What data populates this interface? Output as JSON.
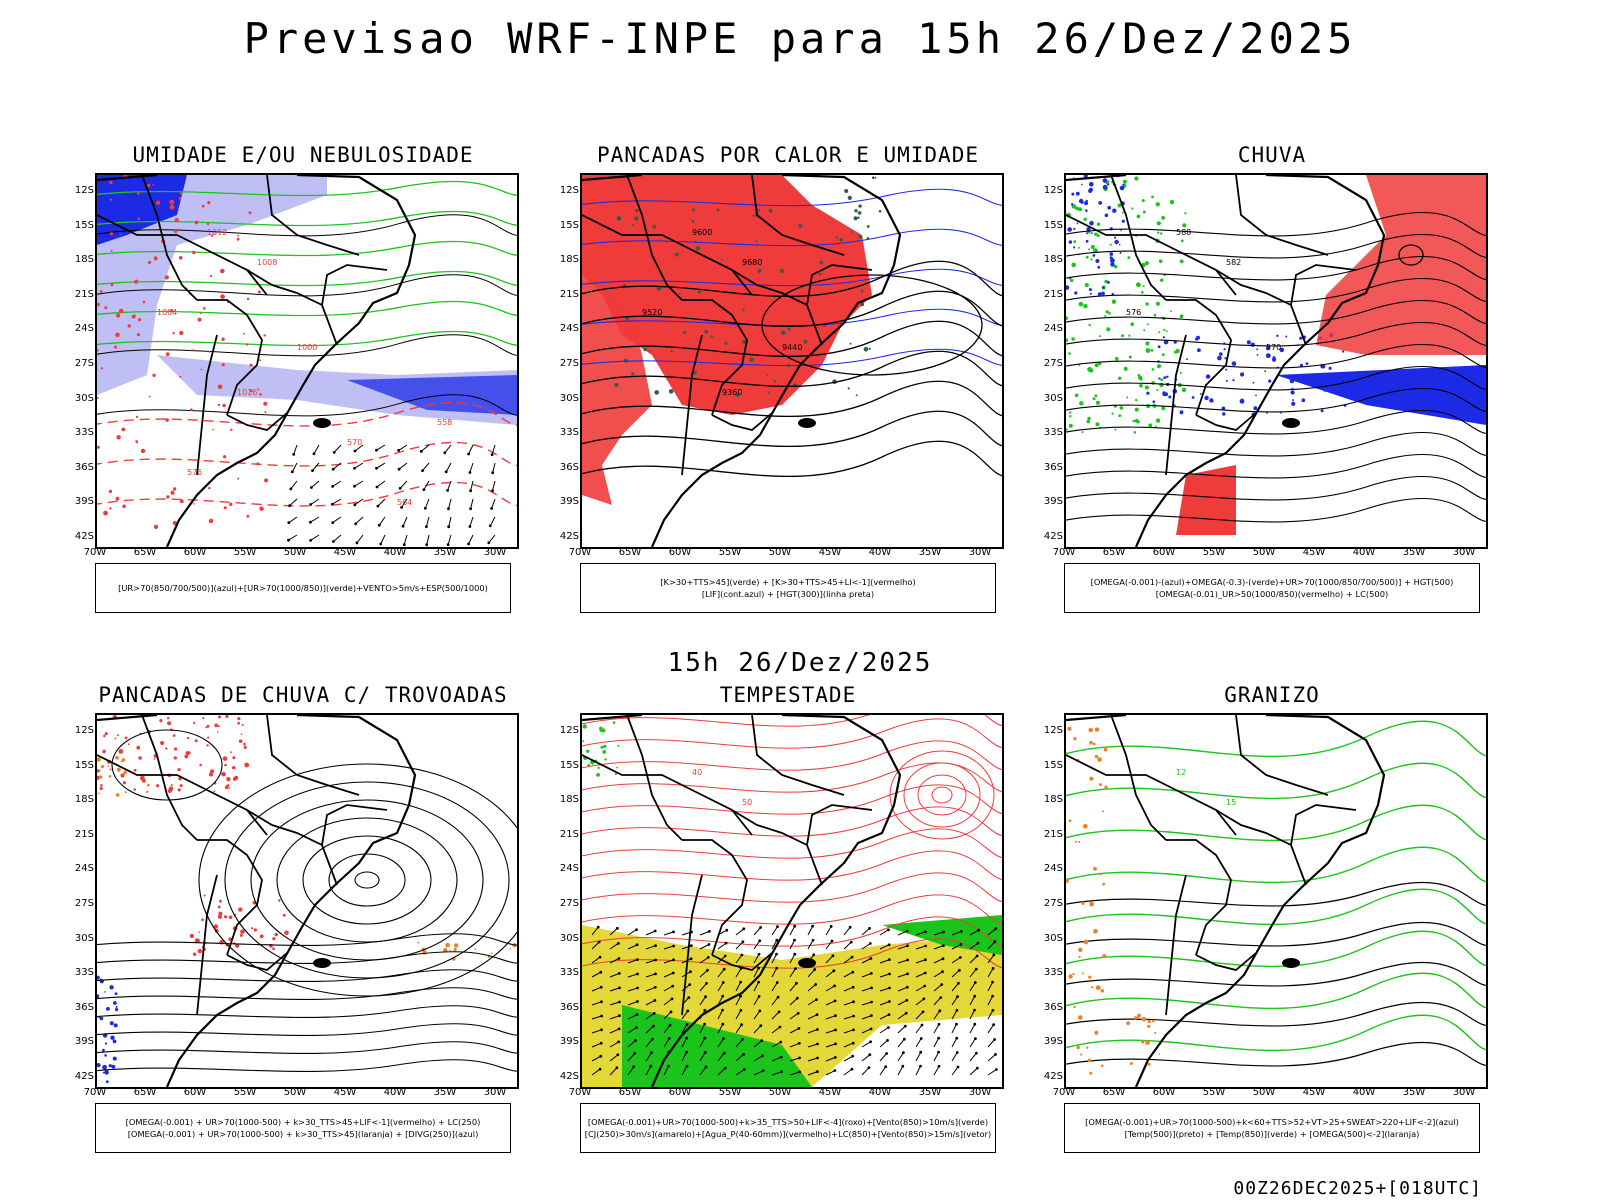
{
  "header": {
    "title": "Previsao WRF-INPE  para 15h 26/Dez/2025"
  },
  "mid_date": "15h 26/Dez/2025",
  "footer_run": "00Z26DEC2025+[018UTC]",
  "axes": {
    "lat": [
      "12S",
      "15S",
      "18S",
      "21S",
      "24S",
      "27S",
      "30S",
      "33S",
      "36S",
      "39S",
      "42S"
    ],
    "lon": [
      "70W",
      "65W",
      "60W",
      "55W",
      "50W",
      "45W",
      "40W",
      "35W",
      "30W"
    ]
  },
  "colors": {
    "blue": "#1c2ae6",
    "lightblue": "#b8b8f5",
    "green": "#1bc41b",
    "red": "#f03b3b",
    "darkgreen": "#2f5e4c",
    "yellow": "#e3d837",
    "orange": "#f08028"
  },
  "panels": [
    {
      "title": "UMIDADE E/OU NEBULOSIDADE",
      "legend": [
        "[UR>70(850/700/500)](azul)+[UR>70(1000/850)](verde)+VENTO>5m/s+ESP(500/1000)"
      ],
      "labels": [
        "1012",
        "1008",
        "1004",
        "1000",
        "1016",
        "570",
        "576",
        "564",
        "558"
      ]
    },
    {
      "title": "PANCADAS POR CALOR E UMIDADE",
      "legend": [
        "[K>30+TTS>45](verde) + [K>30+TTS>45+LI<-1](vermelho)",
        "[LIF](cont.azul) + [HGT(300)](linha preta)"
      ],
      "labels": [
        "9600",
        "9680",
        "9520",
        "9440",
        "9360"
      ]
    },
    {
      "title": "CHUVA",
      "legend": [
        "[OMEGA(-0.001)-(azul)+OMEGA(-0.3)-(verde)+UR>70(1000/850/700/500)] + HGT(500)",
        "[OMEGA(-0.01)_UR>50(1000/850)(vermelho) + LC(500)"
      ],
      "labels": [
        "588",
        "582",
        "576",
        "570"
      ]
    },
    {
      "title": "PANCADAS DE CHUVA C/ TROVOADAS",
      "legend": [
        "[OMEGA(-0.001) + UR>70(1000-500) + k>30_TTS>45+LIF<-1](vermelho) + LC(250)",
        "[OMEGA(-0.001) + UR>70(1000-500) + k>30_TTS>45](laranja) + [DIVG(250)](azul)"
      ],
      "labels": []
    },
    {
      "title": "TEMPESTADE",
      "legend": [
        "[OMEGA(-0.001)+UR>70(1000-500)+k>35_TTS>50+LIF<-4](roxo)+[Vento(850)>10m/s](verde)",
        "[CJ(250)>30m/s](amarelo)+[Agua_P(40-60mm)](vermelho)+LC(850)+[Vento(850)>15m/s](vetor)"
      ],
      "labels": [
        "40",
        "50"
      ]
    },
    {
      "title": "GRANIZO",
      "legend": [
        "[OMEGA(-0.001)+UR>70(1000-500)+k<60+TTS>52+VT>25+SWEAT>220+LIF<-2](azul)",
        "[Temp(500)](preto) + [Temp(850)](verde) + [OMEGA(500)<-2](laranja)"
      ],
      "labels": [
        "12",
        "15"
      ]
    }
  ]
}
